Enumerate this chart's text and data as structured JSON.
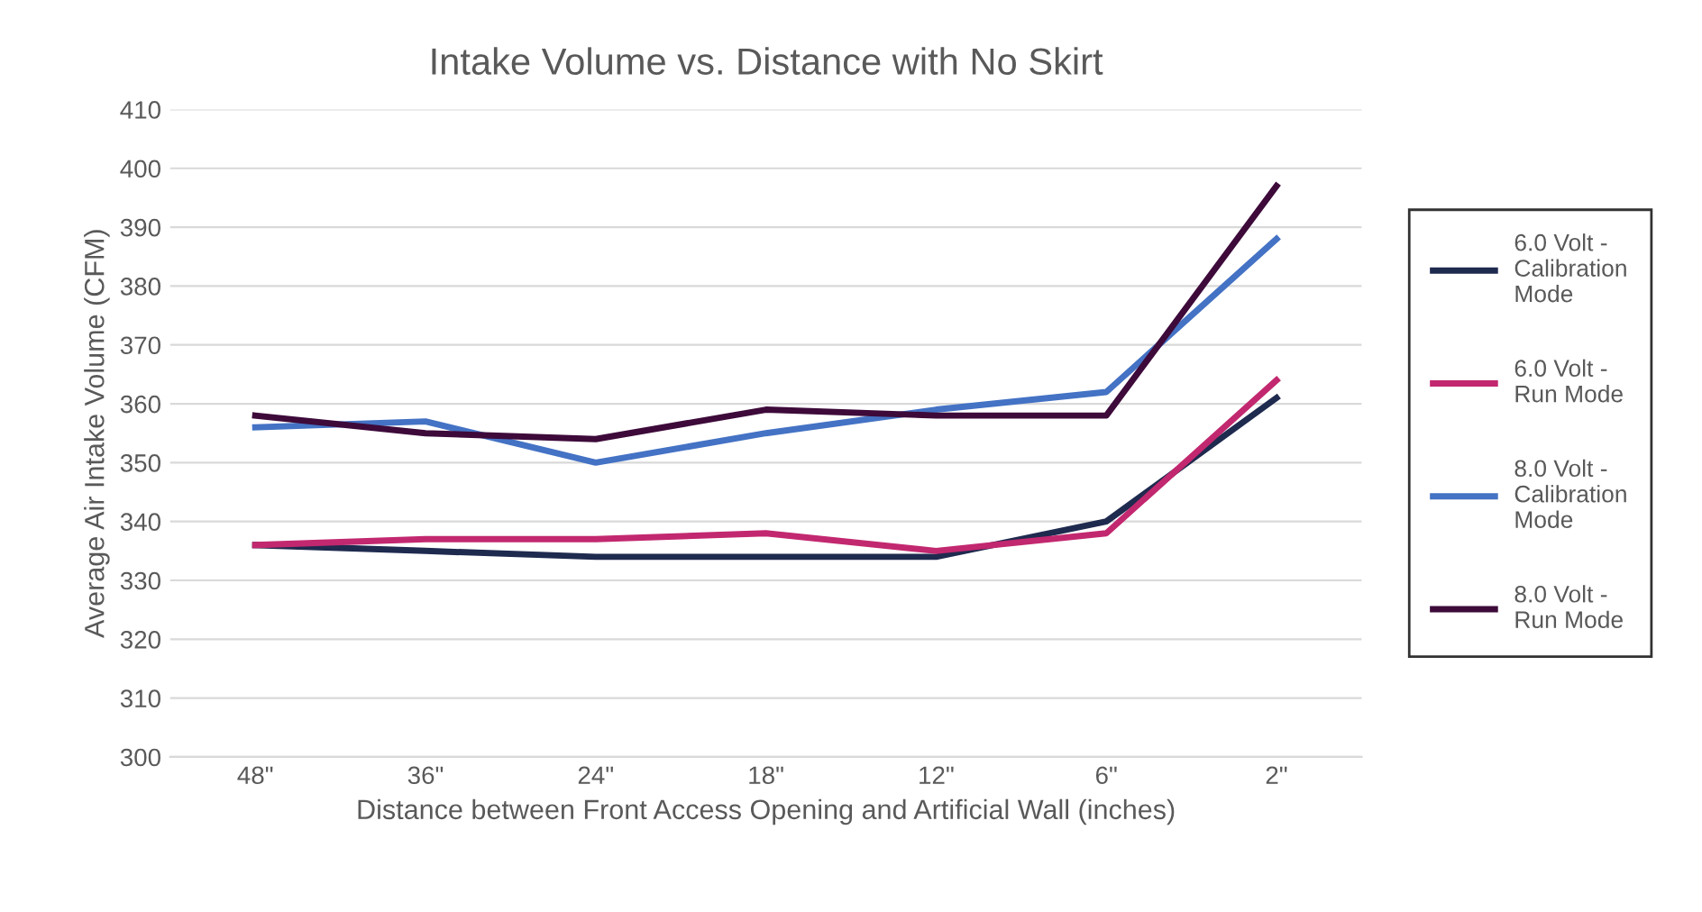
{
  "chart_data": {
    "type": "line",
    "title": "Intake Volume vs. Distance with No Skirt",
    "xlabel": "Distance between Front Access Opening and Artificial Wall (inches)",
    "ylabel": "Average Air Intake Volume (CFM)",
    "categories": [
      "48\"",
      "36\"",
      "24\"",
      "18\"",
      "12\"",
      "6\"",
      "2\""
    ],
    "series": [
      {
        "name": "6.0 Volt - Calibration Mode",
        "color": "#1f2a4f",
        "values": [
          336,
          335,
          334,
          334,
          334,
          340,
          361
        ]
      },
      {
        "name": "6.0 Volt - Run Mode",
        "color": "#c2286f",
        "values": [
          336,
          337,
          337,
          338,
          335,
          338,
          364
        ]
      },
      {
        "name": "8.0 Volt - Calibration Mode",
        "color": "#4472c4",
        "values": [
          356,
          357,
          350,
          355,
          359,
          362,
          388
        ]
      },
      {
        "name": "8.0 Volt - Run Mode",
        "color": "#3d0a3a",
        "values": [
          358,
          355,
          354,
          359,
          358,
          358,
          397
        ]
      }
    ],
    "ylim": [
      300,
      410
    ],
    "yticks": [
      300,
      310,
      320,
      330,
      340,
      350,
      360,
      370,
      380,
      390,
      400,
      410
    ],
    "grid": "y",
    "legend": "right",
    "marker": "none",
    "line_style": "solid"
  }
}
